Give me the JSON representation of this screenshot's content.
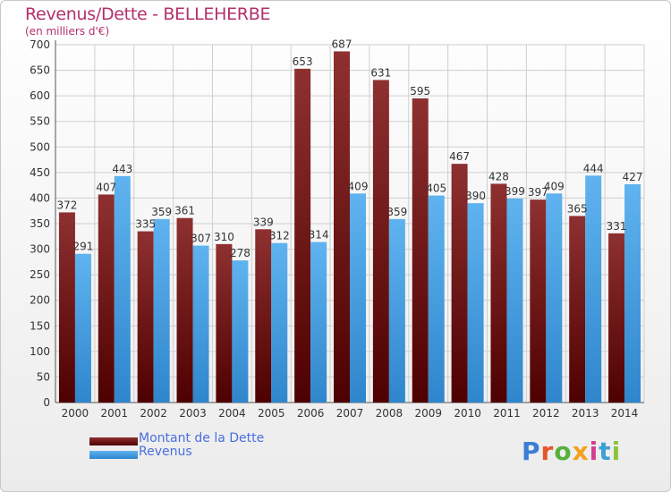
{
  "title": "Revenus/Dette - BELLEHERBE",
  "subtitle": "(en milliers d'€)",
  "legend": {
    "debt_label": "Montant de la Dette",
    "revenue_label": "Revenus"
  },
  "logo": {
    "text": "Proxiti",
    "letter_colors": [
      "#3a7fd5",
      "#e8542c",
      "#57b03b",
      "#f2a21c",
      "#d43d8f",
      "#3aa0d8",
      "#8fc13e"
    ]
  },
  "colors": {
    "debt": "#7a1a1a",
    "debt_light": "#8e3030",
    "debt_dark": "#4e0000",
    "revenue": "#4aa2e4",
    "revenue_light": "#5fb3ef",
    "revenue_dark": "#2f86cc",
    "grid": "#cfcfcf",
    "axis_text": "#333333",
    "label_text": "#333333",
    "title": "#b3306b"
  },
  "chart_data": {
    "type": "bar",
    "title": "Revenus/Dette - BELLEHERBE",
    "ylabel": "(en milliers d'€)",
    "xlabel": "",
    "ylim": [
      0,
      700
    ],
    "yticks": [
      0,
      50,
      100,
      150,
      200,
      250,
      300,
      350,
      400,
      450,
      500,
      550,
      600,
      650,
      700
    ],
    "grid": true,
    "legend_position": "bottom-left",
    "categories": [
      "2000",
      "2001",
      "2002",
      "2003",
      "2004",
      "2005",
      "2006",
      "2007",
      "2008",
      "2009",
      "2010",
      "2011",
      "2012",
      "2013",
      "2014"
    ],
    "series": [
      {
        "name": "Montant de la Dette",
        "values": [
          372,
          407,
          335,
          361,
          310,
          339,
          653,
          687,
          631,
          595,
          467,
          428,
          397,
          365,
          331
        ]
      },
      {
        "name": "Revenus",
        "values": [
          291,
          443,
          359,
          307,
          278,
          312,
          314,
          409,
          359,
          405,
          390,
          399,
          409,
          444,
          427
        ]
      }
    ]
  }
}
